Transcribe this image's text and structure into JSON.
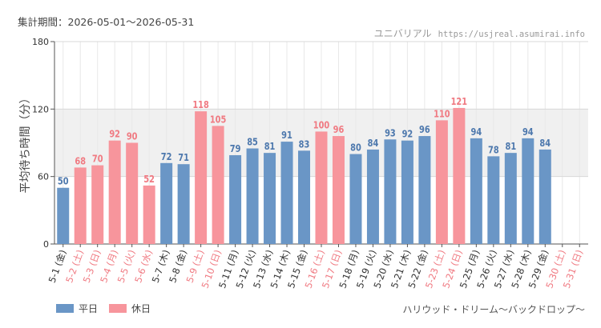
{
  "header": {
    "period": "集計期間：2026-05-01～2026-05-31",
    "brand_name": "ユニバリアル",
    "brand_url": "https://usjreal.asumirai.info"
  },
  "footer": {
    "attraction": "ハリウッド・ドリーム～バックドロップ～"
  },
  "legend": [
    {
      "label": "平日",
      "color": "#6a96c6"
    },
    {
      "label": "休日",
      "color": "#f7959c"
    }
  ],
  "colors": {
    "weekday_bar": "#6a96c6",
    "holiday_bar": "#f7959c",
    "weekday_text": "#4d78ad",
    "holiday_text": "#f07a82",
    "band": "#f0f0f0"
  },
  "chart_data": {
    "type": "bar",
    "ylabel": "平均待ち時間（分）",
    "ylim": [
      0,
      180
    ],
    "yticks": [
      0,
      60,
      120,
      180
    ],
    "shaded_band": [
      60,
      120
    ],
    "grid": true,
    "categories": [
      "5-1 (金)",
      "5-2 (土)",
      "5-3 (日)",
      "5-4 (月)",
      "5-5 (火)",
      "5-6 (水)",
      "5-7 (木)",
      "5-8 (金)",
      "5-9 (土)",
      "5-10 (日)",
      "5-11 (月)",
      "5-12 (火)",
      "5-13 (水)",
      "5-14 (木)",
      "5-15 (金)",
      "5-16 (土)",
      "5-17 (日)",
      "5-18 (月)",
      "5-19 (火)",
      "5-20 (水)",
      "5-21 (木)",
      "5-22 (金)",
      "5-23 (土)",
      "5-24 (日)",
      "5-25 (月)",
      "5-26 (火)",
      "5-27 (水)",
      "5-28 (木)",
      "5-29 (金)",
      "5-30 (土)",
      "5-31 (日)"
    ],
    "values": [
      50,
      68,
      70,
      92,
      90,
      52,
      72,
      71,
      118,
      105,
      79,
      85,
      81,
      91,
      83,
      100,
      96,
      80,
      84,
      93,
      92,
      96,
      110,
      121,
      94,
      78,
      81,
      94,
      84,
      null,
      null
    ],
    "day_type": [
      "平日",
      "休日",
      "休日",
      "休日",
      "休日",
      "休日",
      "平日",
      "平日",
      "休日",
      "休日",
      "平日",
      "平日",
      "平日",
      "平日",
      "平日",
      "休日",
      "休日",
      "平日",
      "平日",
      "平日",
      "平日",
      "平日",
      "休日",
      "休日",
      "平日",
      "平日",
      "平日",
      "平日",
      "平日",
      "休日",
      "休日"
    ]
  }
}
